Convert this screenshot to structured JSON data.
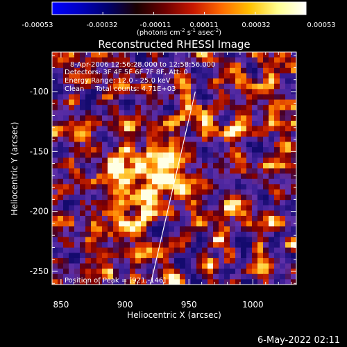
{
  "colorbar": {
    "ticks": [
      "-0.00053",
      "-0.00032",
      "-0.00011",
      "0.00011",
      "0.00032",
      "0.00053"
    ],
    "units_main": "(photons cm",
    "units_exp1": "-2",
    "units_mid": " s",
    "units_exp2": "-1",
    "units_end": " asec",
    "units_exp3": "-2",
    "units_close": ")",
    "colors": [
      "#0000ff",
      "#0000c0",
      "#00006a",
      "#1a0000",
      "#6e0000",
      "#c81800",
      "#ff6a00",
      "#ffc000",
      "#ffff90",
      "#ffffff"
    ]
  },
  "chart_data": {
    "type": "heatmap",
    "title": "Reconstructed RHESSI Image",
    "xlabel": "Heliocentric X (arcsec)",
    "ylabel": "Heliocentric Y (arcsec)",
    "xlim": [
      843,
      1034
    ],
    "ylim": [
      -261,
      -67
    ],
    "x_ticks": [
      850,
      900,
      950,
      1000
    ],
    "y_ticks": [
      -100,
      -150,
      -200,
      -250
    ],
    "value_range": [
      -0.00053,
      0.00053
    ],
    "limb_line": [
      [
        920,
        -261
      ],
      [
        955,
        -100
      ]
    ],
    "annotations": {
      "time": "8-Apr-2006 12:56:28.000 to 12:58:56.000",
      "detectors": "Detectors: 3F 4F 5F 6F 7F 8F, Att: 0",
      "energy": "Energy Range: 12.0 - 25.0 keV",
      "clean": "Clean     Total counts: 4.71E+03",
      "peak": "Position of Peak = [921,-146]"
    }
  },
  "timestamp": "6-May-2022 02:11"
}
